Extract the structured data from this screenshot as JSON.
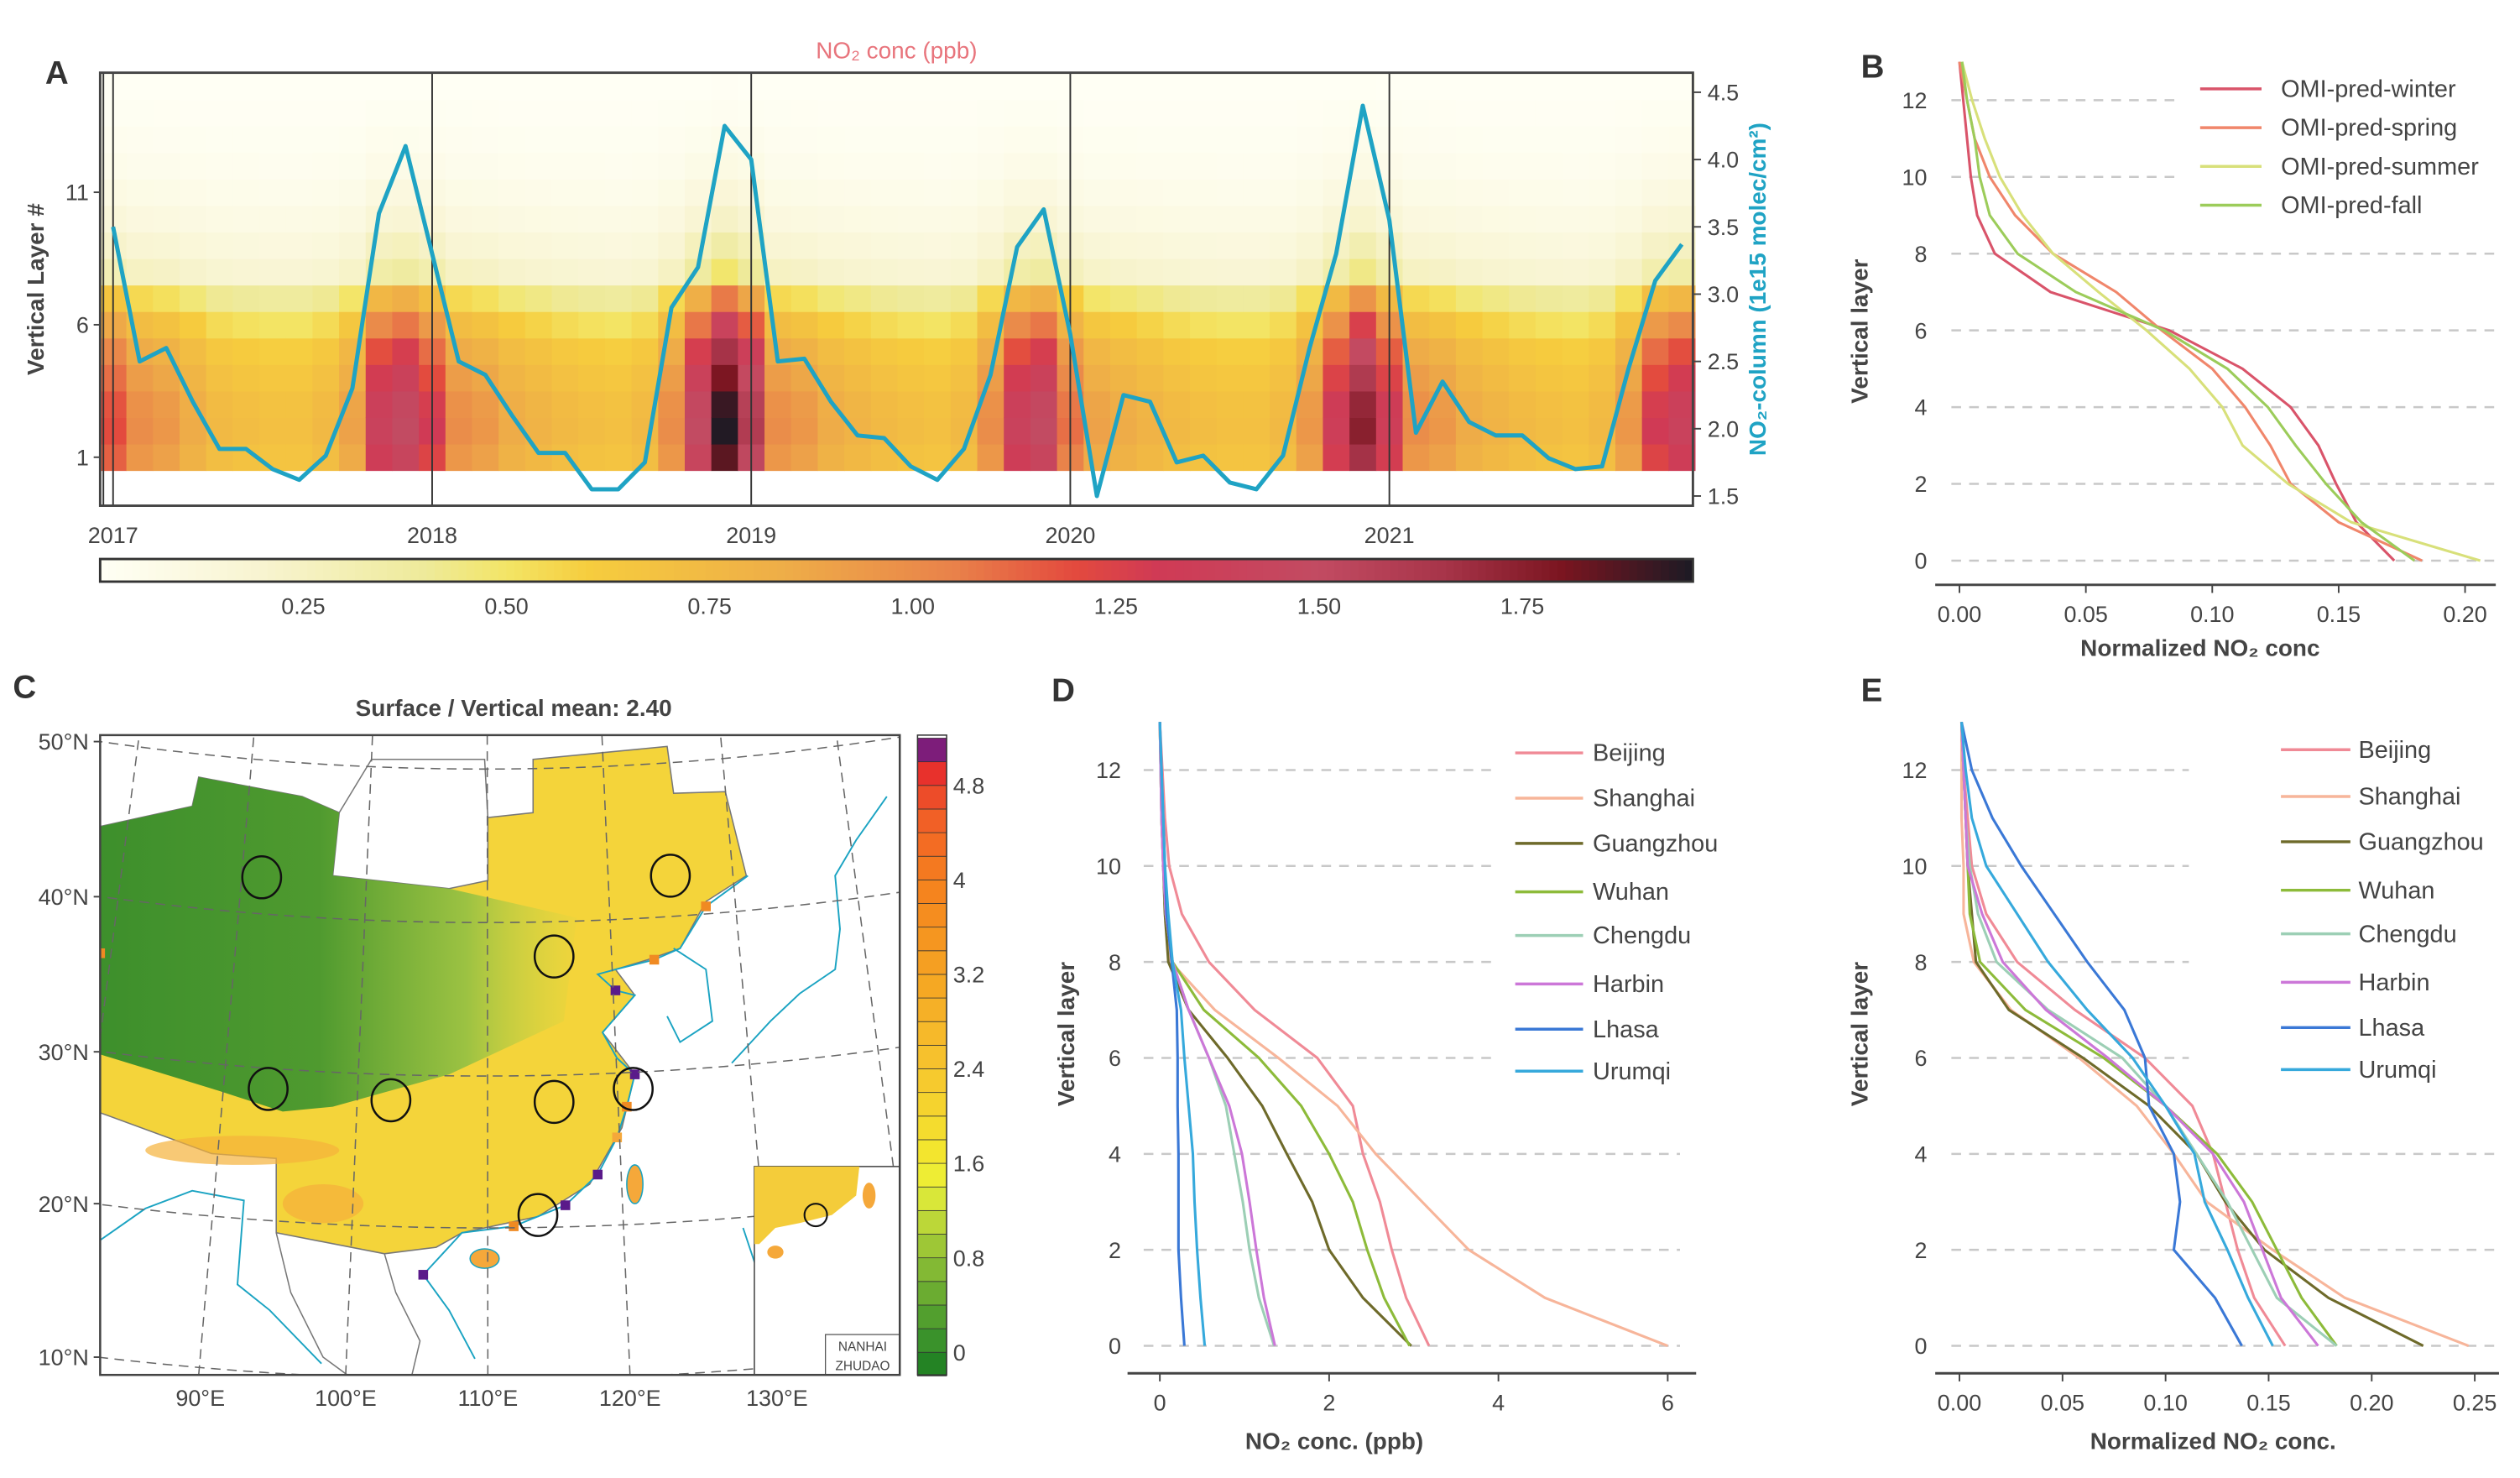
{
  "chart_data": [
    {
      "panel_label": "A",
      "type": "heatmap",
      "title": "NO₂ conc (ppb)",
      "ylabel": "Vertical Layer #",
      "y_ticks": [
        "1",
        "6",
        "11"
      ],
      "x_ticks": [
        "2017",
        "2018",
        "2019",
        "2020",
        "2021"
      ],
      "right_ylabel": "NO₂-column (1e15 molec/cm²)",
      "right_yticks": [
        "1.5",
        "2.0",
        "2.5",
        "3.0",
        "3.5",
        "4.0",
        "4.5"
      ],
      "line_color": "#1fa3c4",
      "heatmap": {
        "layers": [
          1,
          2,
          3,
          4,
          5,
          6,
          7,
          8,
          9,
          10,
          11,
          12,
          13,
          14,
          15
        ],
        "monthly_max": [
          1.2,
          1.0,
          0.95,
          0.85,
          0.75,
          0.72,
          0.7,
          0.7,
          0.75,
          0.9,
          1.4,
          1.5,
          1.3,
          1.0,
          0.95,
          0.85,
          0.8,
          0.75,
          0.72,
          0.7,
          0.75,
          1.0,
          1.5,
          1.95,
          1.6,
          1.0,
          0.95,
          0.85,
          0.8,
          0.75,
          0.72,
          0.7,
          0.75,
          1.0,
          1.4,
          1.5,
          1.1,
          0.9,
          0.85,
          0.8,
          0.75,
          0.72,
          0.7,
          0.7,
          0.75,
          0.95,
          1.35,
          1.75,
          1.35,
          1.0,
          0.95,
          0.85,
          0.8,
          0.75,
          0.72,
          0.7,
          0.75,
          0.95,
          1.3,
          1.4
        ],
        "layer_profile": [
          0.95,
          1.0,
          0.98,
          0.92,
          0.85,
          0.72,
          0.55,
          0.25,
          0.18,
          0.12,
          0.08,
          0.05,
          0.03,
          0.015,
          0.005
        ]
      },
      "column_series": [
        3.5,
        2.5,
        2.6,
        2.2,
        1.85,
        1.85,
        1.7,
        1.62,
        1.8,
        2.3,
        3.6,
        4.1,
        3.3,
        2.5,
        2.4,
        2.1,
        1.82,
        1.82,
        1.55,
        1.55,
        1.75,
        2.9,
        3.2,
        4.25,
        4.0,
        2.5,
        2.52,
        2.2,
        1.95,
        1.93,
        1.72,
        1.62,
        1.85,
        2.4,
        3.35,
        3.63,
        2.7,
        1.5,
        2.25,
        2.2,
        1.75,
        1.8,
        1.6,
        1.55,
        1.8,
        2.6,
        3.3,
        4.4,
        3.55,
        1.97,
        2.35,
        2.05,
        1.95,
        1.95,
        1.78,
        1.7,
        1.72,
        2.45,
        3.1,
        3.37
      ],
      "colorbar": {
        "range": [
          0,
          1.96
        ],
        "ticks": [
          "0.25",
          "0.50",
          "0.75",
          "1.00",
          "1.25",
          "1.50",
          "1.75"
        ]
      },
      "colorscale": [
        [
          0,
          "#fffff5"
        ],
        [
          0.2,
          "#f8f4d0"
        ],
        [
          0.4,
          "#eeea9a"
        ],
        [
          0.5,
          "#f3e566"
        ],
        [
          0.6,
          "#f6cd3e"
        ],
        [
          0.85,
          "#eeac48"
        ],
        [
          1.05,
          "#e9824a"
        ],
        [
          1.2,
          "#e34a3e"
        ],
        [
          1.3,
          "#d03a55"
        ],
        [
          1.5,
          "#c24b62"
        ],
        [
          1.65,
          "#a8354a"
        ],
        [
          1.8,
          "#7a1520"
        ],
        [
          1.96,
          "#1c1a24"
        ]
      ]
    },
    {
      "panel_label": "B",
      "type": "line",
      "xlabel": "Normalized NO₂ conc",
      "ylabel": "Vertical layer",
      "x_ticks": [
        "0.00",
        "0.05",
        "0.10",
        "0.15",
        "0.20"
      ],
      "y_ticks": [
        "0",
        "2",
        "4",
        "6",
        "8",
        "10",
        "12"
      ],
      "grid": true,
      "legend": "top-right",
      "layers": [
        0,
        1,
        2,
        3,
        4,
        5,
        6,
        7,
        8,
        9,
        10,
        11,
        12,
        13
      ],
      "series": [
        {
          "name": "OMI-pred-winter",
          "color": "#d9546a",
          "values": [
            0.172,
            0.157,
            0.149,
            0.142,
            0.131,
            0.112,
            0.083,
            0.036,
            0.014,
            0.007,
            0.0045,
            0.003,
            0.0015,
            0.0
          ]
        },
        {
          "name": "OMI-pred-spring",
          "color": "#f0866b",
          "values": [
            0.183,
            0.15,
            0.131,
            0.123,
            0.113,
            0.1,
            0.08,
            0.062,
            0.037,
            0.022,
            0.012,
            0.006,
            0.003,
            0.0
          ]
        },
        {
          "name": "OMI-pred-summer",
          "color": "#d8e07a",
          "values": [
            0.206,
            0.155,
            0.13,
            0.112,
            0.104,
            0.091,
            0.074,
            0.055,
            0.037,
            0.025,
            0.016,
            0.01,
            0.005,
            0.001
          ]
        },
        {
          "name": "OMI-pred-fall",
          "color": "#9ccc5a",
          "values": [
            0.18,
            0.159,
            0.145,
            0.133,
            0.122,
            0.106,
            0.081,
            0.046,
            0.023,
            0.012,
            0.008,
            0.006,
            0.003,
            0.001
          ]
        }
      ]
    },
    {
      "panel_label": "C",
      "type": "map",
      "title": "Surface / Vertical mean: 2.40",
      "lat_ticks": [
        "50°N",
        "40°N",
        "30°N",
        "20°N",
        "10°N"
      ],
      "lon_ticks": [
        "90°E",
        "100°E",
        "110°E",
        "120°E",
        "130°E"
      ],
      "colorbar": {
        "range": [
          -0.2,
          5.2
        ],
        "ticks": [
          "0",
          "0.8",
          "1.6",
          "2.4",
          "3.2",
          "4",
          "4.8"
        ]
      },
      "colorscale": [
        [
          -0.2,
          "#1a7a1e"
        ],
        [
          0,
          "#2e8b2a"
        ],
        [
          0.8,
          "#8fbf35"
        ],
        [
          1.4,
          "#e8ef3a"
        ],
        [
          1.6,
          "#f3ea2e"
        ],
        [
          2.4,
          "#f6c52e"
        ],
        [
          3.2,
          "#f5a422"
        ],
        [
          4.0,
          "#f57f1e"
        ],
        [
          4.6,
          "#f05a28"
        ],
        [
          4.9,
          "#e8312c"
        ],
        [
          5.0,
          "#b0206a"
        ],
        [
          5.2,
          "#4a1a8a"
        ]
      ],
      "inset_label": [
        "NANHAI",
        "ZHUDAO"
      ],
      "coast_color": "#1aa3c2"
    },
    {
      "panel_label": "D",
      "type": "line",
      "xlabel": "NO₂ conc. (ppb)",
      "ylabel": "Vertical layer",
      "x_ticks": [
        "0",
        "2",
        "4",
        "6"
      ],
      "y_ticks": [
        "0",
        "2",
        "4",
        "6",
        "8",
        "10",
        "12"
      ],
      "grid": true,
      "legend": "top-right",
      "layers": [
        0,
        1,
        2,
        3,
        4,
        5,
        6,
        7,
        8,
        9,
        10,
        11,
        12,
        13
      ],
      "series": [
        {
          "name": "Beijing",
          "color": "#f08a96",
          "values": [
            3.18,
            2.91,
            2.74,
            2.6,
            2.4,
            2.28,
            1.86,
            1.12,
            0.58,
            0.26,
            0.11,
            0.06,
            0.03,
            0.0
          ]
        },
        {
          "name": "Shanghai",
          "color": "#f7b59a",
          "values": [
            6.0,
            4.55,
            3.65,
            3.1,
            2.55,
            2.1,
            1.4,
            0.65,
            0.13,
            0.07,
            0.05,
            0.04,
            0.02,
            0.0
          ]
        },
        {
          "name": "Guangzhou",
          "color": "#6e6a2a",
          "values": [
            2.97,
            2.4,
            2.0,
            1.8,
            1.5,
            1.21,
            0.8,
            0.34,
            0.1,
            0.06,
            0.04,
            0.02,
            0.01,
            0.0
          ]
        },
        {
          "name": "Wuhan",
          "color": "#8dbb3a",
          "values": [
            2.95,
            2.65,
            2.45,
            2.28,
            2.0,
            1.67,
            1.17,
            0.52,
            0.15,
            0.07,
            0.04,
            0.02,
            0.01,
            0.0
          ]
        },
        {
          "name": "Chengdu",
          "color": "#9ccfb5",
          "values": [
            1.35,
            1.17,
            1.06,
            0.98,
            0.88,
            0.78,
            0.58,
            0.34,
            0.15,
            0.07,
            0.04,
            0.02,
            0.01,
            0.0
          ]
        },
        {
          "name": "Harbin",
          "color": "#cc77d8",
          "values": [
            1.36,
            1.23,
            1.14,
            1.06,
            0.97,
            0.82,
            0.58,
            0.34,
            0.15,
            0.07,
            0.04,
            0.02,
            0.01,
            0.0
          ]
        },
        {
          "name": "Lhasa",
          "color": "#3a78d6",
          "values": [
            0.29,
            0.25,
            0.22,
            0.22,
            0.22,
            0.21,
            0.21,
            0.2,
            0.14,
            0.08,
            0.06,
            0.04,
            0.02,
            0.0
          ]
        },
        {
          "name": "Urumqi",
          "color": "#36a9dc",
          "values": [
            0.53,
            0.48,
            0.44,
            0.41,
            0.39,
            0.34,
            0.29,
            0.25,
            0.15,
            0.1,
            0.06,
            0.04,
            0.02,
            0.0
          ]
        }
      ]
    },
    {
      "panel_label": "E",
      "type": "line",
      "xlabel": "Normalized NO₂ conc.",
      "ylabel": "Vertical layer",
      "x_ticks": [
        "0.00",
        "0.05",
        "0.10",
        "0.15",
        "0.20",
        "0.25"
      ],
      "y_ticks": [
        "0",
        "2",
        "4",
        "6",
        "8",
        "10",
        "12"
      ],
      "grid": true,
      "legend": "top-right",
      "layers": [
        0,
        1,
        2,
        3,
        4,
        5,
        6,
        7,
        8,
        9,
        10,
        11,
        12,
        13
      ],
      "series": [
        {
          "name": "Beijing",
          "color": "#f08a96",
          "values": [
            0.158,
            0.143,
            0.135,
            0.129,
            0.123,
            0.113,
            0.09,
            0.056,
            0.028,
            0.013,
            0.006,
            0.004,
            0.002,
            0.001
          ]
        },
        {
          "name": "Shanghai",
          "color": "#f7b59a",
          "values": [
            0.247,
            0.187,
            0.152,
            0.12,
            0.104,
            0.086,
            0.058,
            0.025,
            0.007,
            0.002,
            0.002,
            0.001,
            0.001,
            0.001
          ]
        },
        {
          "name": "Guangzhou",
          "color": "#6e6a2a",
          "values": [
            0.225,
            0.179,
            0.148,
            0.129,
            0.115,
            0.092,
            0.06,
            0.024,
            0.008,
            0.006,
            0.004,
            0.003,
            0.002,
            0.001
          ]
        },
        {
          "name": "Wuhan",
          "color": "#8dbb3a",
          "values": [
            0.183,
            0.166,
            0.154,
            0.142,
            0.125,
            0.1,
            0.07,
            0.032,
            0.01,
            0.005,
            0.004,
            0.003,
            0.002,
            0.001
          ]
        },
        {
          "name": "Chengdu",
          "color": "#9ccfb5",
          "values": [
            0.183,
            0.154,
            0.142,
            0.13,
            0.115,
            0.1,
            0.079,
            0.043,
            0.018,
            0.009,
            0.005,
            0.003,
            0.002,
            0.001
          ]
        },
        {
          "name": "Harbin",
          "color": "#cc77d8",
          "values": [
            0.174,
            0.156,
            0.147,
            0.138,
            0.123,
            0.1,
            0.072,
            0.042,
            0.021,
            0.011,
            0.004,
            0.003,
            0.002,
            0.001
          ]
        },
        {
          "name": "Lhasa",
          "color": "#3a78d6",
          "values": [
            0.137,
            0.124,
            0.104,
            0.107,
            0.104,
            0.092,
            0.09,
            0.08,
            0.062,
            0.046,
            0.03,
            0.016,
            0.006,
            0.001
          ]
        },
        {
          "name": "Urumqi",
          "color": "#36a9dc",
          "values": [
            0.152,
            0.14,
            0.13,
            0.119,
            0.114,
            0.1,
            0.084,
            0.062,
            0.043,
            0.028,
            0.013,
            0.006,
            0.003,
            0.001
          ]
        }
      ]
    }
  ]
}
